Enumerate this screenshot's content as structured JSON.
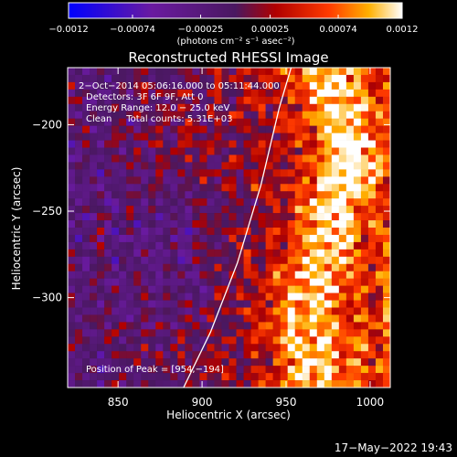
{
  "chart_data": {
    "type": "heatmap",
    "title": "Reconstructed RHESSI Image",
    "xlabel": "Heliocentric X (arcsec)",
    "ylabel": "Heliocentric Y (arcsec)",
    "xlim": [
      820,
      1012
    ],
    "ylim": [
      -352,
      -167
    ],
    "x_ticks": [
      850,
      900,
      950,
      1000
    ],
    "y_ticks": [
      -200,
      -250,
      -300
    ],
    "x_tick_labels": [
      "850",
      "900",
      "950",
      "1000"
    ],
    "y_tick_labels": [
      "−200",
      "−250",
      "−300"
    ],
    "colorbar": {
      "range": [
        -0.0012,
        0.0012
      ],
      "ticks": [
        -0.0012,
        -0.00074,
        -0.00025,
        0.00025,
        0.00074,
        0.0012
      ],
      "tick_labels": [
        "−0.0012",
        "−0.00074",
        "−0.00025",
        "0.00025",
        "0.00074",
        "0.0012"
      ],
      "units": "(photons cm⁻² s⁻¹ asec⁻²)"
    },
    "annotations": [
      "2−Oct−2014 05:06:16.000 to 05:11:44.000",
      "Detectors: 3F 6F 9F, Att 0",
      "Energy Range: 12.0 − 25.0 keV",
      "Clean     Total counts: 5.31E+03"
    ],
    "peak_label": "Position of Peak = [954,−194]",
    "peak_position": [
      954,
      -194
    ],
    "limb_curve": [
      [
        889,
        -352
      ],
      [
        905,
        -320
      ],
      [
        921,
        -280
      ],
      [
        935,
        -235
      ],
      [
        946,
        -190
      ],
      [
        953,
        -167
      ]
    ]
  },
  "footer": {
    "timestamp": "17−May−2022 19:43"
  }
}
